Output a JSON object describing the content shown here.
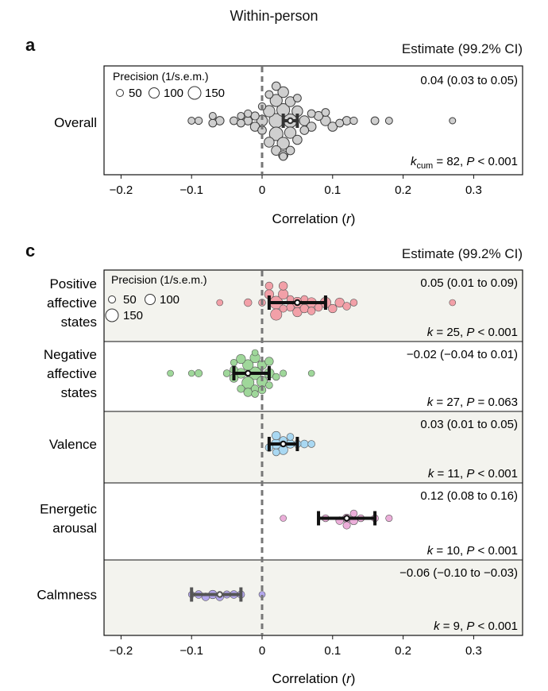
{
  "figure_title": "Within-person",
  "panel_a": {
    "letter": "a",
    "estimate_header": "Estimate  (99.2% CI)",
    "row_label": "Overall",
    "estimate_text": "0.04 (0.03 to 0.05)",
    "stats_k": "k",
    "stats_k_sub": "cum",
    "stats_rest": " = 82, ",
    "stats_p": "P",
    "stats_p_rest": " < 0.001",
    "legend_title": "Precision (1/s.e.m.)",
    "legend_values": [
      "50",
      "100",
      "150"
    ],
    "x_tick_labels": [
      "−0.2",
      "−0.1",
      "0",
      "0.1",
      "0.2",
      "0.3"
    ],
    "x_label_text": "Correlation (",
    "x_label_var": "r",
    "x_label_close": ")"
  },
  "panel_c": {
    "letter": "c",
    "estimate_header": "Estimate  (99.2% CI)",
    "legend_title": "Precision (1/s.e.m.)",
    "legend_values": [
      "50",
      "100",
      "150"
    ],
    "x_tick_labels": [
      "−0.2",
      "−0.1",
      "0",
      "0.1",
      "0.2",
      "0.3"
    ],
    "x_label_text": "Correlation (",
    "x_label_var": "r",
    "x_label_close": ")",
    "rows": [
      {
        "label": [
          "Positive",
          "affective",
          "states"
        ],
        "estimate_text": "0.05 (0.01 to 0.09)",
        "k_text": " = 25, ",
        "p_text": " < 0.001"
      },
      {
        "label": [
          "Negative",
          "affective",
          "states"
        ],
        "estimate_text": "−0.02 (−0.04 to 0.01)",
        "k_text": " = 27, ",
        "p_text": " = 0.063"
      },
      {
        "label": [
          "Valence"
        ],
        "estimate_text": "0.03 (0.01 to 0.05)",
        "k_text": " = 11, ",
        "p_text": " < 0.001"
      },
      {
        "label": [
          "Energetic",
          "arousal"
        ],
        "estimate_text": "0.12 (0.08 to 0.16)",
        "k_text": " = 10, ",
        "p_text": " < 0.001"
      },
      {
        "label": [
          "Calmness"
        ],
        "estimate_text": "−0.06 (−0.10 to −0.03)",
        "k_text": " = 9, ",
        "p_text": " < 0.001"
      }
    ]
  },
  "chart_data": [
    {
      "type": "scatter",
      "title": "Within-person",
      "xlabel": "Correlation (r)",
      "xlim": [
        -0.22,
        0.37
      ],
      "x_ticks": [
        -0.2,
        -0.1,
        0,
        0.1,
        0.2,
        0.3
      ],
      "reference_line_x": 0,
      "series": [
        {
          "name": "Overall",
          "estimate": 0.04,
          "ci": [
            0.03,
            0.05
          ],
          "color": "#cfcfcf",
          "points": [
            {
              "x": -0.1,
              "precision": 50
            },
            {
              "x": -0.09,
              "precision": 55
            },
            {
              "x": -0.07,
              "precision": 60
            },
            {
              "x": -0.07,
              "precision": 50
            },
            {
              "x": -0.06,
              "precision": 70
            },
            {
              "x": -0.04,
              "precision": 60
            },
            {
              "x": -0.03,
              "precision": 60
            },
            {
              "x": -0.03,
              "precision": 50
            },
            {
              "x": -0.02,
              "precision": 70
            },
            {
              "x": -0.02,
              "precision": 55
            },
            {
              "x": -0.01,
              "precision": 65
            },
            {
              "x": -0.01,
              "precision": 80
            },
            {
              "x": 0.0,
              "precision": 55
            },
            {
              "x": 0.0,
              "precision": 100
            },
            {
              "x": 0.0,
              "precision": 70
            },
            {
              "x": 0.01,
              "precision": 60
            },
            {
              "x": 0.01,
              "precision": 110
            },
            {
              "x": 0.01,
              "precision": 90
            },
            {
              "x": 0.02,
              "precision": 120
            },
            {
              "x": 0.02,
              "precision": 85
            },
            {
              "x": 0.02,
              "precision": 70
            },
            {
              "x": 0.02,
              "precision": 150
            },
            {
              "x": 0.02,
              "precision": 140
            },
            {
              "x": 0.03,
              "precision": 130
            },
            {
              "x": 0.03,
              "precision": 100
            },
            {
              "x": 0.03,
              "precision": 80
            },
            {
              "x": 0.03,
              "precision": 120
            },
            {
              "x": 0.03,
              "precision": 60
            },
            {
              "x": 0.04,
              "precision": 140
            },
            {
              "x": 0.04,
              "precision": 110
            },
            {
              "x": 0.04,
              "precision": 90
            },
            {
              "x": 0.04,
              "precision": 70
            },
            {
              "x": 0.05,
              "precision": 100
            },
            {
              "x": 0.05,
              "precision": 80
            },
            {
              "x": 0.05,
              "precision": 60
            },
            {
              "x": 0.06,
              "precision": 90
            },
            {
              "x": 0.06,
              "precision": 70
            },
            {
              "x": 0.07,
              "precision": 80
            },
            {
              "x": 0.07,
              "precision": 60
            },
            {
              "x": 0.08,
              "precision": 75
            },
            {
              "x": 0.09,
              "precision": 90
            },
            {
              "x": 0.09,
              "precision": 60
            },
            {
              "x": 0.1,
              "precision": 80
            },
            {
              "x": 0.11,
              "precision": 60
            },
            {
              "x": 0.12,
              "precision": 70
            },
            {
              "x": 0.13,
              "precision": 55
            },
            {
              "x": 0.16,
              "precision": 60
            },
            {
              "x": 0.18,
              "precision": 50
            },
            {
              "x": 0.27,
              "precision": 40
            }
          ]
        }
      ]
    },
    {
      "type": "scatter",
      "xlabel": "Correlation (r)",
      "xlim": [
        -0.22,
        0.37
      ],
      "x_ticks": [
        -0.2,
        -0.1,
        0,
        0.1,
        0.2,
        0.3
      ],
      "reference_line_x": 0,
      "series": [
        {
          "name": "Positive affective states",
          "estimate": 0.05,
          "ci": [
            0.01,
            0.09
          ],
          "k": 25,
          "P": "< 0.001",
          "color": "#f2a0a8",
          "points": [
            {
              "x": -0.06,
              "precision": 40
            },
            {
              "x": -0.02,
              "precision": 60
            },
            {
              "x": 0.0,
              "precision": 50
            },
            {
              "x": 0.01,
              "precision": 60
            },
            {
              "x": 0.01,
              "precision": 80
            },
            {
              "x": 0.02,
              "precision": 110
            },
            {
              "x": 0.02,
              "precision": 130
            },
            {
              "x": 0.03,
              "precision": 70
            },
            {
              "x": 0.03,
              "precision": 90
            },
            {
              "x": 0.04,
              "precision": 50
            },
            {
              "x": 0.04,
              "precision": 60
            },
            {
              "x": 0.05,
              "precision": 100
            },
            {
              "x": 0.05,
              "precision": 80
            },
            {
              "x": 0.06,
              "precision": 70
            },
            {
              "x": 0.07,
              "precision": 90
            },
            {
              "x": 0.07,
              "precision": 60
            },
            {
              "x": 0.08,
              "precision": 60
            },
            {
              "x": 0.09,
              "precision": 100
            },
            {
              "x": 0.1,
              "precision": 70
            },
            {
              "x": 0.11,
              "precision": 80
            },
            {
              "x": 0.12,
              "precision": 60
            },
            {
              "x": 0.13,
              "precision": 50
            },
            {
              "x": 0.03,
              "precision": 55
            },
            {
              "x": 0.06,
              "precision": 50
            },
            {
              "x": 0.27,
              "precision": 40
            }
          ]
        },
        {
          "name": "Negative affective states",
          "estimate": -0.02,
          "ci": [
            -0.04,
            0.01
          ],
          "k": 27,
          "P": "= 0.063",
          "color": "#9fd79a",
          "points": [
            {
              "x": -0.13,
              "precision": 40
            },
            {
              "x": -0.1,
              "precision": 40
            },
            {
              "x": -0.09,
              "precision": 55
            },
            {
              "x": -0.05,
              "precision": 50
            },
            {
              "x": -0.04,
              "precision": 70
            },
            {
              "x": -0.04,
              "precision": 60
            },
            {
              "x": -0.03,
              "precision": 80
            },
            {
              "x": -0.03,
              "precision": 90
            },
            {
              "x": -0.02,
              "precision": 120
            },
            {
              "x": -0.02,
              "precision": 100
            },
            {
              "x": -0.01,
              "precision": 130
            },
            {
              "x": -0.01,
              "precision": 90
            },
            {
              "x": -0.01,
              "precision": 60
            },
            {
              "x": -0.01,
              "precision": 50
            },
            {
              "x": 0.0,
              "precision": 80
            },
            {
              "x": 0.0,
              "precision": 100
            },
            {
              "x": 0.0,
              "precision": 60
            },
            {
              "x": 0.01,
              "precision": 90
            },
            {
              "x": 0.01,
              "precision": 70
            },
            {
              "x": 0.01,
              "precision": 50
            },
            {
              "x": -0.02,
              "precision": 70
            },
            {
              "x": -0.03,
              "precision": 55
            },
            {
              "x": 0.02,
              "precision": 50
            },
            {
              "x": -0.04,
              "precision": 45
            },
            {
              "x": 0.03,
              "precision": 45
            },
            {
              "x": 0.07,
              "precision": 40
            },
            {
              "x": -0.01,
              "precision": 40
            }
          ]
        },
        {
          "name": "Valence",
          "estimate": 0.03,
          "ci": [
            0.01,
            0.05
          ],
          "k": 11,
          "P": "< 0.001",
          "color": "#a9d8f2",
          "points": [
            {
              "x": 0.01,
              "precision": 60
            },
            {
              "x": 0.02,
              "precision": 50
            },
            {
              "x": 0.02,
              "precision": 70
            },
            {
              "x": 0.03,
              "precision": 80
            },
            {
              "x": 0.03,
              "precision": 60
            },
            {
              "x": 0.04,
              "precision": 50
            },
            {
              "x": 0.04,
              "precision": 70
            },
            {
              "x": 0.05,
              "precision": 55
            },
            {
              "x": 0.06,
              "precision": 60
            },
            {
              "x": 0.07,
              "precision": 50
            },
            {
              "x": 0.02,
              "precision": 90
            }
          ]
        },
        {
          "name": "Energetic arousal",
          "estimate": 0.12,
          "ci": [
            0.08,
            0.16
          ],
          "k": 10,
          "P": "< 0.001",
          "color": "#ebaed9",
          "points": [
            {
              "x": 0.03,
              "precision": 40
            },
            {
              "x": 0.09,
              "precision": 50
            },
            {
              "x": 0.11,
              "precision": 60
            },
            {
              "x": 0.12,
              "precision": 70
            },
            {
              "x": 0.12,
              "precision": 55
            },
            {
              "x": 0.13,
              "precision": 65
            },
            {
              "x": 0.13,
              "precision": 50
            },
            {
              "x": 0.14,
              "precision": 50
            },
            {
              "x": 0.16,
              "precision": 50
            },
            {
              "x": 0.18,
              "precision": 45
            }
          ]
        },
        {
          "name": "Calmness",
          "estimate": -0.06,
          "ci": [
            -0.1,
            -0.03
          ],
          "k": 9,
          "P": "< 0.001",
          "color": "#b3a7ec",
          "points": [
            {
              "x": -0.1,
              "precision": 40
            },
            {
              "x": -0.09,
              "precision": 60
            },
            {
              "x": -0.08,
              "precision": 60
            },
            {
              "x": -0.07,
              "precision": 70
            },
            {
              "x": -0.06,
              "precision": 60
            },
            {
              "x": -0.05,
              "precision": 55
            },
            {
              "x": -0.04,
              "precision": 60
            },
            {
              "x": -0.03,
              "precision": 55
            },
            {
              "x": 0.0,
              "precision": 40
            }
          ]
        }
      ]
    }
  ],
  "colors": {
    "frame": "#111111",
    "zero_line": "#777777",
    "shaded_row": "#f3f3ee",
    "marker_outline_overall": "#3a3a3a",
    "ci_bar": "#111111",
    "ci_bar_calmness": "#555555"
  }
}
